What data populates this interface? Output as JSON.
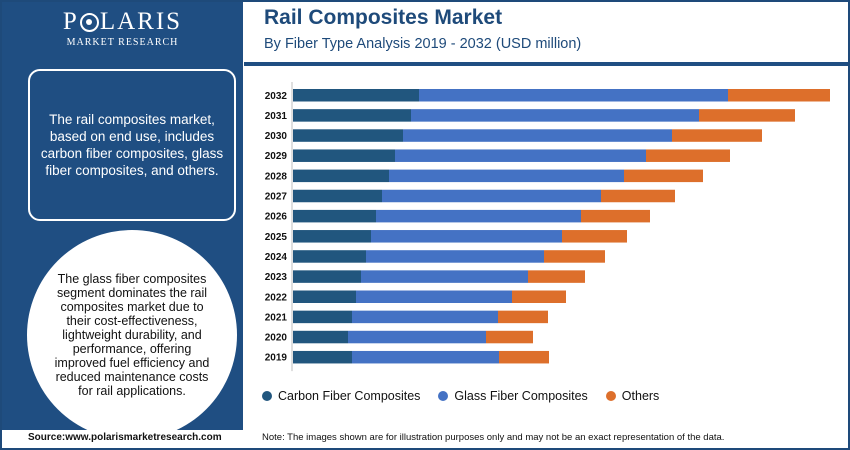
{
  "brand": {
    "name_before_o": "P",
    "name_after_o": "LARIS",
    "tagline": "MARKET RESEARCH"
  },
  "header": {
    "title": "Rail Composites Market",
    "subtitle": "By Fiber Type Analysis 2019 - 2032 (USD million)"
  },
  "left_panel": {
    "box_text": "The rail composites market, based on end use, includes carbon fiber composites, glass fiber composites, and others.",
    "circle_text": "The glass fiber composites segment dominates the rail composites market due to their cost-effectiveness, lightweight durability, and performance, offering improved fuel efficiency and reduced maintenance costs for rail applications."
  },
  "footer": {
    "source": "Source:www.polarismarketresearch.com",
    "note": "Note: The images shown are for illustration purposes only and may not be an exact representation of the data."
  },
  "colors": {
    "carbon": "#21567e",
    "glass": "#4472c4",
    "others": "#dd6f2b",
    "brand_blue": "#1f4e82"
  },
  "chart_data": {
    "type": "bar",
    "orientation": "horizontal",
    "stacked": true,
    "categories": [
      "2032",
      "2031",
      "2030",
      "2029",
      "2028",
      "2027",
      "2026",
      "2025",
      "2024",
      "2023",
      "2022",
      "2021",
      "2020",
      "2019"
    ],
    "series": [
      {
        "name": "Carbon Fiber Composites",
        "color": "#21567e",
        "values": [
          126,
          118,
          110,
          102,
          96,
          89,
          83,
          78,
          73,
          68,
          63,
          59,
          55,
          59
        ]
      },
      {
        "name": "Glass Fiber Composites",
        "color": "#4472c4",
        "values": [
          309,
          288,
          269,
          251,
          235,
          219,
          205,
          191,
          178,
          167,
          156,
          146,
          138,
          147
        ]
      },
      {
        "name": "Others",
        "color": "#dd6f2b",
        "values": [
          102,
          96,
          90,
          84,
          79,
          74,
          69,
          65,
          61,
          57,
          54,
          50,
          47,
          50
        ]
      }
    ],
    "title": "",
    "xlabel": "",
    "ylabel": "",
    "grid": false,
    "axis_values_shown": false,
    "legend_position": "bottom"
  }
}
